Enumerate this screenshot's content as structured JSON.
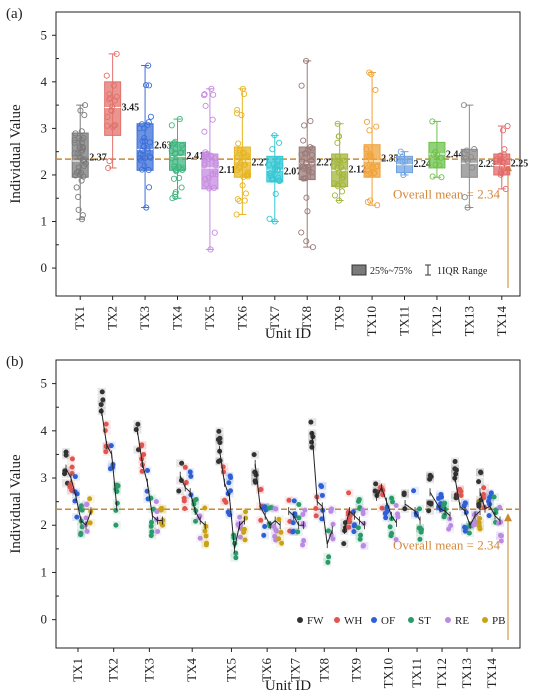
{
  "chart_data": [
    {
      "type": "box",
      "panel_label": "(a)",
      "xlabel": "Unit ID",
      "ylabel": "Individual Value",
      "ylim": [
        -0.6,
        5.5
      ],
      "yticks": [
        0,
        1,
        2,
        3,
        4,
        5
      ],
      "categories": [
        "TX1",
        "TX2",
        "TX3",
        "TX4",
        "TX5",
        "TX6",
        "TX7",
        "TX8",
        "TX9",
        "TX10",
        "TX11",
        "TX12",
        "TX13",
        "TX14"
      ],
      "colors": [
        "#7a7a7a",
        "#e2716b",
        "#3b6fd8",
        "#3fb67f",
        "#c58be0",
        "#e7b523",
        "#34c7d4",
        "#9a7a78",
        "#a3b53a",
        "#f0a33a",
        "#6fa3e0",
        "#6cc24a",
        "#8a8a8a",
        "#e36a6a"
      ],
      "box_q1": [
        1.95,
        2.85,
        2.1,
        2.1,
        1.7,
        1.95,
        1.85,
        1.9,
        1.75,
        1.95,
        2.05,
        2.15,
        1.95,
        2.0
      ],
      "box_median": [
        2.3,
        3.45,
        2.55,
        2.4,
        2.15,
        2.3,
        2.1,
        2.25,
        2.1,
        2.3,
        2.22,
        2.45,
        2.25,
        2.2
      ],
      "box_q3": [
        2.9,
        4.0,
        3.1,
        2.7,
        2.45,
        2.6,
        2.4,
        2.6,
        2.45,
        2.65,
        2.4,
        2.7,
        2.55,
        2.45
      ],
      "whisker_low": [
        1.05,
        2.15,
        1.3,
        1.5,
        0.4,
        1.15,
        1.0,
        0.45,
        1.45,
        1.35,
        2.0,
        1.95,
        1.3,
        1.7
      ],
      "whisker_high": [
        3.5,
        4.6,
        4.35,
        3.2,
        3.85,
        3.85,
        2.85,
        4.45,
        3.1,
        4.2,
        2.5,
        3.15,
        3.5,
        3.05
      ],
      "means": [
        2.37,
        3.45,
        2.63,
        2.41,
        2.11,
        2.27,
        2.07,
        2.27,
        2.12,
        2.35,
        2.24,
        2.44,
        2.23,
        2.25
      ],
      "mean_labels": [
        "2.37",
        "3.45",
        "2.63",
        "2.41",
        "2.11",
        "2.27",
        "2.07",
        "2.27",
        "2.12",
        "2.35",
        "2.24",
        "2.44",
        "2.23",
        "2.25"
      ],
      "point_counts": [
        40,
        18,
        30,
        30,
        32,
        34,
        25,
        34,
        24,
        24,
        5,
        9,
        10,
        18
      ],
      "overall_mean": 2.34,
      "overall_mean_label": "Overall mean = 2.34",
      "legend": {
        "box_label": "25%~75%",
        "range_label": "1IQR Range",
        "placement": "bottom-right"
      }
    },
    {
      "type": "scatter",
      "panel_label": "(b)",
      "xlabel": "Unit ID",
      "ylabel": "Individual Value",
      "ylim": [
        -0.6,
        5.5
      ],
      "yticks": [
        0,
        1,
        2,
        3,
        4,
        5
      ],
      "categories": [
        "TX1",
        "TX2",
        "TX3",
        "TX4",
        "TX5",
        "TX6",
        "TX7",
        "TX8",
        "TX9",
        "TX10",
        "TX11",
        "TX12",
        "TX13",
        "TX14"
      ],
      "category_positions": [
        1,
        2,
        3,
        4.2,
        5.3,
        6.3,
        7.1,
        7.9,
        8.8,
        9.7,
        10.5,
        11.2,
        11.9,
        12.6
      ],
      "series": [
        {
          "name": "FW",
          "color": "#333333",
          "values": [
            3.2,
            4.4,
            4.0,
            3.05,
            3.6,
            3.3,
            null,
            3.9,
            1.9,
            2.6,
            2.45,
            2.7,
            3.0,
            2.7
          ]
        },
        {
          "name": "WH",
          "color": "#e0564f",
          "values": [
            3.0,
            3.7,
            3.3,
            2.8,
            2.9,
            2.4,
            2.3,
            2.5,
            2.3,
            2.8,
            null,
            null,
            2.4,
            2.35
          ]
        },
        {
          "name": "OF",
          "color": "#2f5fd6",
          "values": [
            2.6,
            3.5,
            2.9,
            2.7,
            2.6,
            2.2,
            2.2,
            2.4,
            2.2,
            2.5,
            2.3,
            2.35,
            2.3,
            2.4
          ]
        },
        {
          "name": "ST",
          "color": "#2a9a6a",
          "values": [
            2.1,
            2.4,
            2.2,
            2.3,
            1.5,
            2.0,
            2.0,
            1.6,
            2.1,
            2.2,
            2.1,
            2.3,
            2.0,
            2.2
          ]
        },
        {
          "name": "RE",
          "color": "#b98be3",
          "values": [
            2.0,
            null,
            2.1,
            2.1,
            2.0,
            2.1,
            2.0,
            1.9,
            2.0,
            2.05,
            null,
            2.2,
            2.2,
            2.1
          ]
        },
        {
          "name": "PB",
          "color": "#c9a218",
          "values": [
            2.3,
            null,
            2.1,
            2.0,
            2.1,
            2.0,
            null,
            null,
            null,
            null,
            null,
            null,
            2.3,
            null
          ]
        }
      ],
      "overall_mean": 2.34,
      "overall_mean_label": "Overall mean = 2.34",
      "legend_placement": "bottom-right"
    }
  ]
}
